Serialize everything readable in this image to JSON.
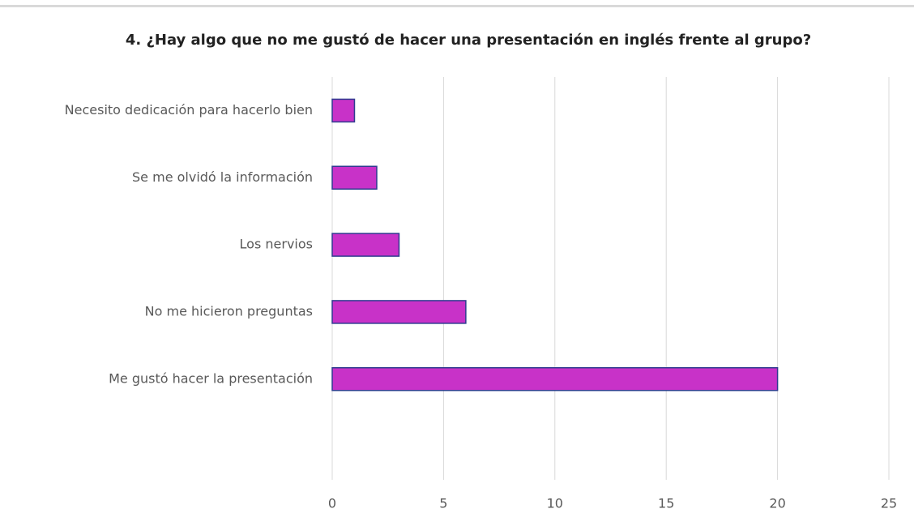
{
  "chart_data": {
    "type": "barh",
    "title": "4. ¿Hay algo que no me gustó de hacer una presentación en inglés frente al grupo?",
    "categories": [
      "Necesito dedicación para hacerlo bien",
      "Se me olvidó la información",
      "Los nervios",
      "No me hicieron preguntas",
      "Me gustó hacer la presentación",
      null
    ],
    "values": [
      1,
      2,
      3,
      6,
      20,
      null
    ],
    "color": "#c832c8",
    "edge_color": "#2f3b8f",
    "xlim": [
      0,
      25
    ],
    "xticks": [
      0,
      5,
      10,
      15,
      20,
      25
    ],
    "grid": true
  }
}
